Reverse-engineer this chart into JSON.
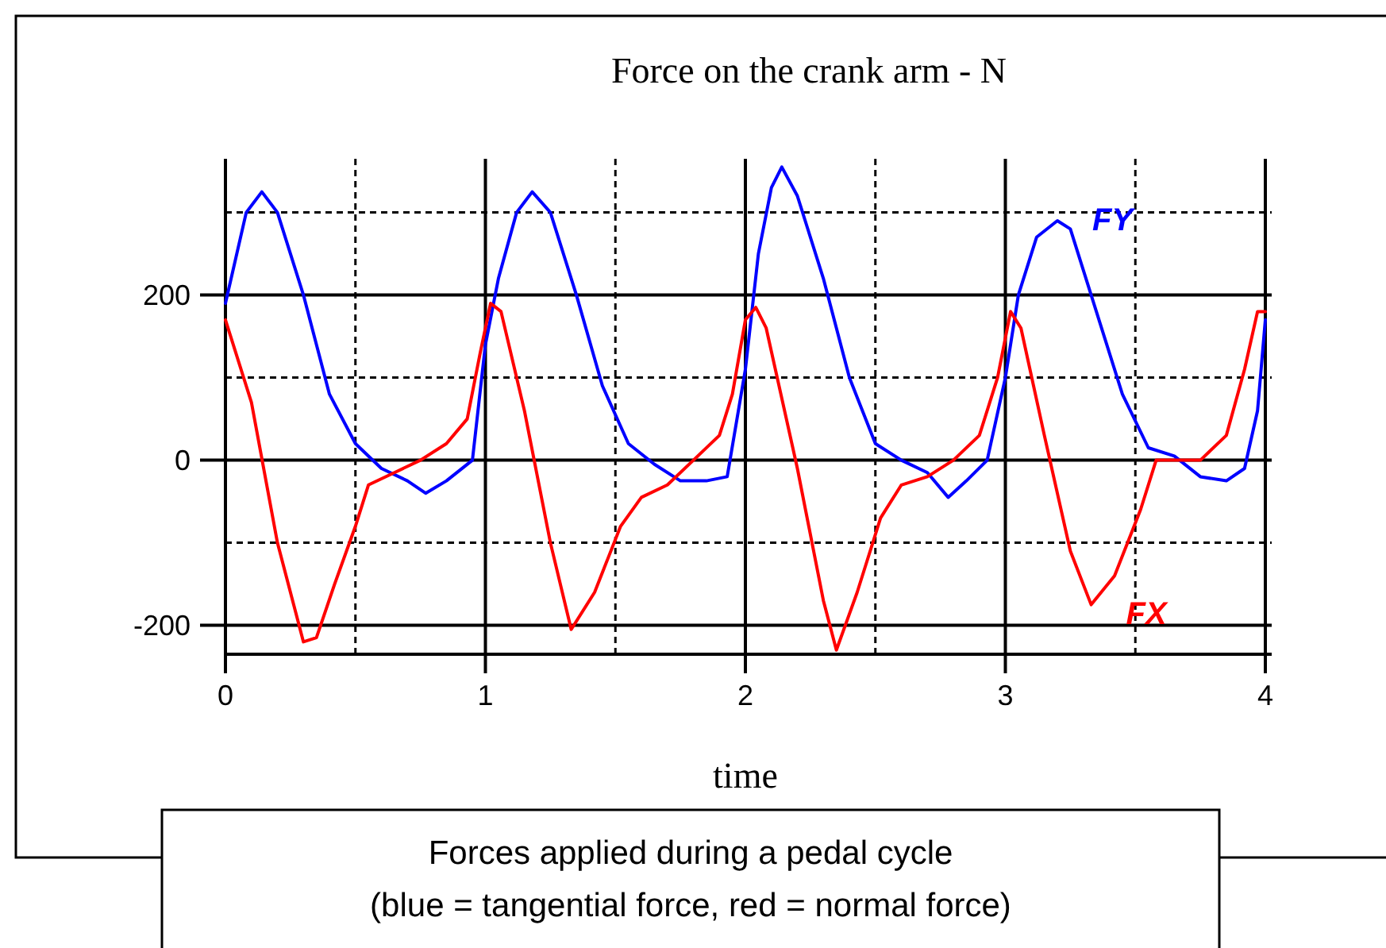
{
  "chart_data": {
    "type": "line",
    "title": "Force on the crank arm - N",
    "xlabel": "time",
    "annotations": [
      "Forces applied during a pedal cycle",
      "(blue = tangential force, red = normal force)"
    ],
    "xlim": [
      0,
      4
    ],
    "xticks": [
      0,
      {
        "value": 0.5,
        "label": null
      },
      1,
      {
        "value": 1.5,
        "label": null
      },
      2,
      {
        "value": 2.5,
        "label": null
      },
      3,
      {
        "value": 3.5,
        "label": null
      },
      4
    ],
    "ylim": [
      -235,
      365
    ],
    "yticks": [
      -200,
      {
        "value": -100,
        "label": null
      },
      0,
      {
        "value": 100,
        "label": null
      },
      200,
      {
        "value": 300,
        "label": null
      }
    ],
    "grid": true,
    "marker": "none",
    "line_style": "solid",
    "series": [
      {
        "name": "FY",
        "color": "#0000ff",
        "x": [
          0,
          0.08,
          0.14,
          0.2,
          0.3,
          0.4,
          0.5,
          0.6,
          0.7,
          0.77,
          0.85,
          0.95,
          1.0,
          1.05,
          1.12,
          1.18,
          1.25,
          1.35,
          1.45,
          1.55,
          1.65,
          1.75,
          1.85,
          1.93,
          2.0,
          2.05,
          2.1,
          2.14,
          2.2,
          2.3,
          2.4,
          2.5,
          2.6,
          2.7,
          2.78,
          2.85,
          2.93,
          3.0,
          3.05,
          3.12,
          3.2,
          3.25,
          3.35,
          3.45,
          3.55,
          3.65,
          3.75,
          3.85,
          3.92,
          3.97,
          4.0
        ],
        "values": [
          190,
          300,
          325,
          300,
          200,
          80,
          20,
          -10,
          -25,
          -40,
          -25,
          0,
          140,
          220,
          300,
          325,
          300,
          200,
          90,
          20,
          -5,
          -25,
          -25,
          -20,
          110,
          250,
          330,
          355,
          320,
          220,
          100,
          20,
          0,
          -15,
          -45,
          -25,
          0,
          100,
          200,
          270,
          290,
          280,
          180,
          80,
          15,
          5,
          -20,
          -25,
          -10,
          60,
          170
        ]
      },
      {
        "name": "FX",
        "color": "#ff0000",
        "x": [
          0,
          0.1,
          0.2,
          0.3,
          0.35,
          0.42,
          0.5,
          0.55,
          0.65,
          0.75,
          0.85,
          0.93,
          0.98,
          1.02,
          1.06,
          1.15,
          1.25,
          1.33,
          1.42,
          1.52,
          1.6,
          1.7,
          1.8,
          1.9,
          1.95,
          2.0,
          2.04,
          2.08,
          2.2,
          2.3,
          2.35,
          2.43,
          2.52,
          2.6,
          2.7,
          2.8,
          2.9,
          2.97,
          3.02,
          3.06,
          3.15,
          3.25,
          3.33,
          3.42,
          3.52,
          3.58,
          3.65,
          3.75,
          3.85,
          3.92,
          3.97,
          4.0
        ],
        "values": [
          170,
          70,
          -100,
          -220,
          -215,
          -150,
          -80,
          -30,
          -15,
          0,
          20,
          50,
          130,
          190,
          180,
          60,
          -100,
          -205,
          -160,
          -80,
          -45,
          -30,
          0,
          30,
          80,
          170,
          185,
          160,
          -10,
          -170,
          -230,
          -160,
          -70,
          -30,
          -20,
          0,
          30,
          100,
          180,
          160,
          30,
          -110,
          -175,
          -140,
          -60,
          0,
          0,
          0,
          30,
          110,
          180,
          180
        ]
      }
    ]
  }
}
